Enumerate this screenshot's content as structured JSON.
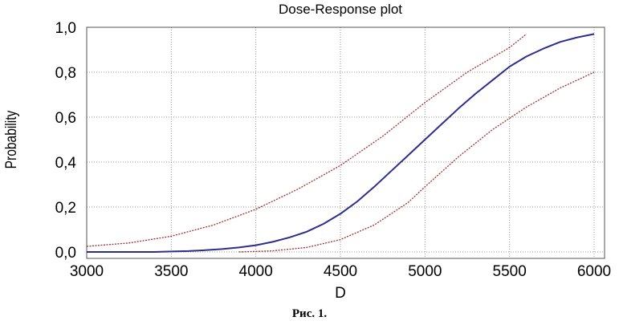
{
  "chart_data": {
    "type": "line",
    "title": "Dose-Response plot",
    "xlabel": "D",
    "ylabel": "Probability",
    "xlim": [
      3000,
      6000
    ],
    "ylim": [
      0,
      1
    ],
    "x_ticks": [
      "3000",
      "3500",
      "4000",
      "4500",
      "5000",
      "5500",
      "6000"
    ],
    "y_ticks": [
      "0,0",
      "0,2",
      "0,4",
      "0,6",
      "0,8",
      "1,0"
    ],
    "x_tick_values": [
      3000,
      3500,
      4000,
      4500,
      5000,
      5500,
      6000
    ],
    "y_tick_values": [
      0,
      0.2,
      0.4,
      0.6,
      0.8,
      1.0
    ],
    "grid": true,
    "series": [
      {
        "color": "#2e2e8a",
        "style": "solid",
        "points": [
          [
            3000,
            0.0
          ],
          [
            3200,
            0.0
          ],
          [
            3400,
            0.0
          ],
          [
            3500,
            0.002
          ],
          [
            3600,
            0.004
          ],
          [
            3700,
            0.008
          ],
          [
            3800,
            0.013
          ],
          [
            3900,
            0.02
          ],
          [
            4000,
            0.03
          ],
          [
            4100,
            0.045
          ],
          [
            4200,
            0.065
          ],
          [
            4300,
            0.09
          ],
          [
            4400,
            0.125
          ],
          [
            4500,
            0.17
          ],
          [
            4600,
            0.225
          ],
          [
            4700,
            0.29
          ],
          [
            4800,
            0.36
          ],
          [
            4900,
            0.43
          ],
          [
            5000,
            0.5
          ],
          [
            5100,
            0.57
          ],
          [
            5200,
            0.64
          ],
          [
            5300,
            0.705
          ],
          [
            5400,
            0.765
          ],
          [
            5500,
            0.825
          ],
          [
            5600,
            0.87
          ],
          [
            5700,
            0.905
          ],
          [
            5800,
            0.935
          ],
          [
            5900,
            0.955
          ],
          [
            6000,
            0.97
          ]
        ]
      },
      {
        "color": "#a03030",
        "style": "dashed",
        "points": [
          [
            3000,
            0.025
          ],
          [
            3250,
            0.04
          ],
          [
            3500,
            0.07
          ],
          [
            3750,
            0.12
          ],
          [
            4000,
            0.19
          ],
          [
            4250,
            0.28
          ],
          [
            4500,
            0.385
          ],
          [
            4750,
            0.515
          ],
          [
            5000,
            0.665
          ],
          [
            5250,
            0.8
          ],
          [
            5500,
            0.91
          ],
          [
            5600,
            0.97
          ]
        ]
      },
      {
        "color": "#a03030",
        "style": "dashed",
        "points": [
          [
            3900,
            0.0
          ],
          [
            4100,
            0.005
          ],
          [
            4300,
            0.02
          ],
          [
            4500,
            0.055
          ],
          [
            4700,
            0.12
          ],
          [
            4900,
            0.22
          ],
          [
            5000,
            0.29
          ],
          [
            5200,
            0.425
          ],
          [
            5400,
            0.545
          ],
          [
            5600,
            0.645
          ],
          [
            5800,
            0.73
          ],
          [
            6000,
            0.8
          ]
        ]
      }
    ]
  },
  "caption": "Рис. 1."
}
